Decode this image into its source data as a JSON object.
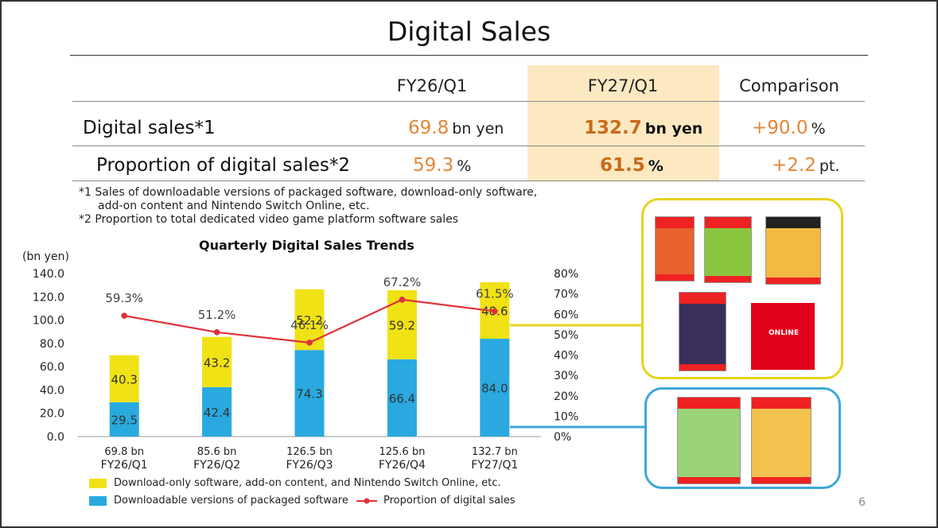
{
  "header": {
    "title": "Digital Sales"
  },
  "summary_table": {
    "columns": [
      "FY26/Q1",
      "FY27/Q1",
      "Comparison"
    ],
    "rows": [
      {
        "label": "Digital sales*1",
        "fy26": "69.8",
        "fy26_unit": "bn yen",
        "fy27": "132.7",
        "fy27_unit": "bn yen",
        "comparison": "+90.0",
        "comparison_unit": "%"
      },
      {
        "label": "Proportion of digital sales*2",
        "fy26": "59.3",
        "fy26_unit": "%",
        "fy27": "61.5",
        "fy27_unit": "%",
        "comparison": "+2.2",
        "comparison_unit": "pt."
      }
    ]
  },
  "notes": [
    "*1 Sales of downloadable versions of packaged software, download-only software,",
    "add-on content and Nintendo Switch Online, etc.",
    "*2 Proportion to total dedicated video game platform software sales"
  ],
  "chart_data": {
    "type": "bar",
    "title": "Quarterly Digital Sales Trends",
    "ylabel": "(bn yen)",
    "ylim": [
      0,
      140
    ],
    "y2lim": [
      0,
      80
    ],
    "y_ticks": [
      "0.0",
      "20.0",
      "40.0",
      "60.0",
      "80.0",
      "100.0",
      "120.0",
      "140.0"
    ],
    "y2_ticks": [
      "0%",
      "10%",
      "20%",
      "30%",
      "40%",
      "50%",
      "60%",
      "70%",
      "80%"
    ],
    "categories": [
      "FY26/Q1",
      "FY26/Q2",
      "FY26/Q3",
      "FY26/Q4",
      "FY27/Q1"
    ],
    "totals": [
      "69.8 bn",
      "85.6 bn",
      "126.5 bn",
      "125.6 bn",
      "132.7 bn"
    ],
    "series": [
      {
        "name": "Downloadable versions of packaged software",
        "color": "#29a9e0",
        "values": [
          29.5,
          42.4,
          74.3,
          66.4,
          84.0
        ]
      },
      {
        "name": "Download-only software, add-on content, and Nintendo Switch Online, etc.",
        "color": "#f1e216",
        "values": [
          40.3,
          43.2,
          52.2,
          59.2,
          48.6
        ]
      }
    ],
    "line_series": {
      "name": "Proportion of digital sales",
      "color": "#e0313a",
      "values": [
        59.3,
        51.2,
        46.1,
        67.2,
        61.5
      ]
    },
    "legend": "bottom",
    "grid": false
  },
  "page_number": "6"
}
